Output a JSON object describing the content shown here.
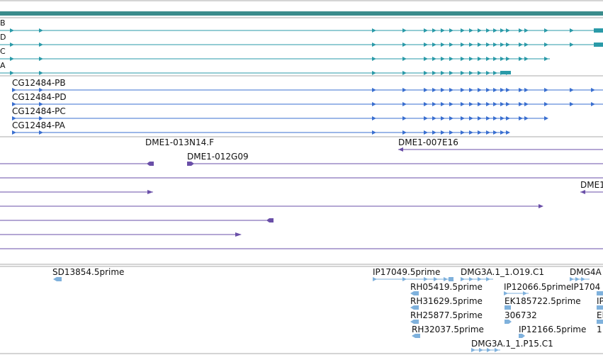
{
  "colors": {
    "teal": "#2a9aa8",
    "teal_dark": "#3a8c8c",
    "blue": "#3a6fd0",
    "purple": "#6a4fa8",
    "lightblue": "#7fb1dc",
    "divider": "#aaaaaa"
  },
  "gene_rows": [
    "B",
    "D",
    "C",
    "A"
  ],
  "transcripts": [
    "CG12484-PB",
    "CG12484-PD",
    "CG12484-PC",
    "CG12484-PA"
  ],
  "bac_labels": [
    "DME1-013N14.F",
    "DME1-012G09",
    "DME1-007E16",
    "DME1"
  ],
  "est_labels": [
    "SD13854.5prime",
    "IP17049.5prime",
    "DMG3A.1_1.O19.C1",
    "DMG4A",
    "RH05419.5prime",
    "IP12066.5prime",
    "IP1704",
    "RH31629.5prime",
    "EK185722.5prime",
    "IP",
    "RH25877.5prime",
    "306732",
    "El",
    "RH32037.5prime",
    "IP12166.5prime",
    "1",
    "DMG3A.1_1.P15.C1"
  ]
}
